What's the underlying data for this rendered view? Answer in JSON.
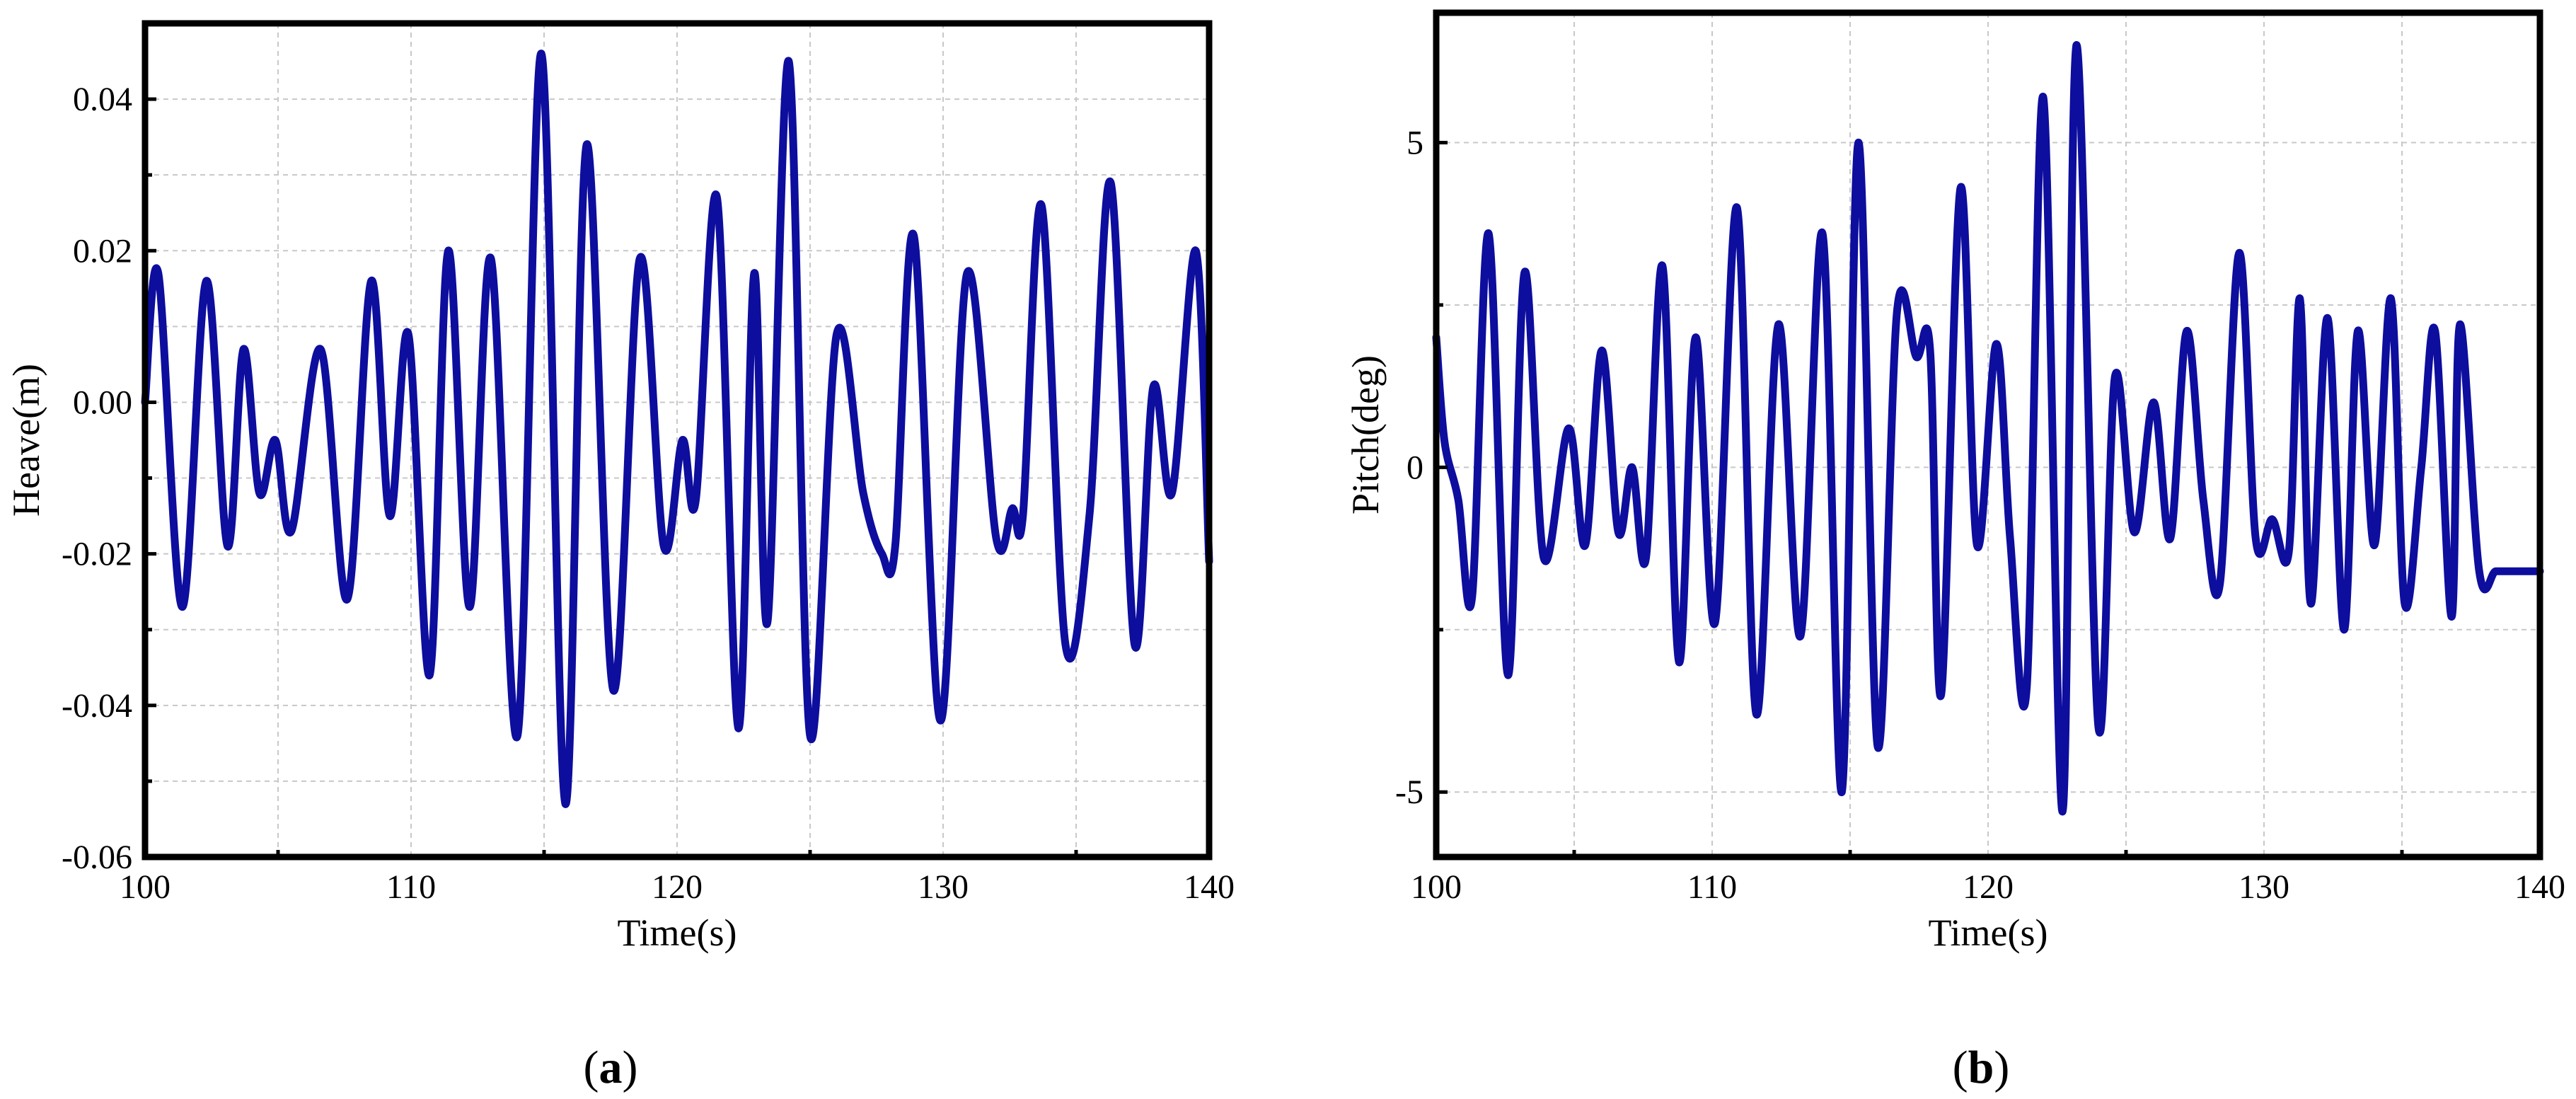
{
  "figure": {
    "captions": [
      {
        "open": "(",
        "letter": "a",
        "close": ")"
      },
      {
        "open": "(",
        "letter": "b",
        "close": ")"
      }
    ]
  },
  "colors": {
    "line": "#0d0d9e",
    "grid": "#c8c8c8",
    "frame": "#000000"
  },
  "chart_data": [
    {
      "type": "line",
      "title": "",
      "xlabel": "Time(s)",
      "ylabel": "Heave(m)",
      "xlim": [
        100,
        140
      ],
      "ylim": [
        -0.06,
        0.05
      ],
      "xticks": [
        100,
        110,
        120,
        130,
        140
      ],
      "xtick_labels": [
        "100",
        "110",
        "120",
        "130",
        "140"
      ],
      "yticks": [
        -0.06,
        -0.04,
        -0.02,
        0.0,
        0.02,
        0.04
      ],
      "ytick_labels": [
        "-0.06",
        "-0.04",
        "-0.02",
        "0.00",
        "0.02",
        "0.04"
      ],
      "grid": true,
      "legend": "none",
      "series": [
        {
          "color": "#0d0d9e",
          "x": [
            100.0,
            100.5,
            101.4,
            102.3,
            103.1,
            103.7,
            104.3,
            104.9,
            105.5,
            106.6,
            107.6,
            108.5,
            109.2,
            109.9,
            110.7,
            111.4,
            112.2,
            113.0,
            114.0,
            114.9,
            115.8,
            116.6,
            117.6,
            118.6,
            119.5,
            120.2,
            120.7,
            121.5,
            122.3,
            122.9,
            123.4,
            124.2,
            125.0,
            126.0,
            127.0,
            127.7,
            128.2,
            128.9,
            129.9,
            130.9,
            132.0,
            132.6,
            133.0,
            133.7,
            134.6,
            135.5,
            136.3,
            137.2,
            137.9,
            138.6,
            139.5,
            140.0
          ],
          "y": [
            0.0,
            0.017,
            -0.027,
            0.016,
            -0.019,
            0.007,
            -0.012,
            -0.005,
            -0.017,
            0.007,
            -0.026,
            0.016,
            -0.015,
            0.009,
            -0.036,
            0.02,
            -0.027,
            0.019,
            -0.044,
            0.046,
            -0.053,
            0.034,
            -0.038,
            0.019,
            -0.019,
            -0.005,
            -0.013,
            0.027,
            -0.043,
            0.017,
            -0.029,
            0.045,
            -0.044,
            0.009,
            -0.012,
            -0.02,
            -0.019,
            0.022,
            -0.042,
            0.017,
            -0.018,
            -0.014,
            -0.015,
            0.026,
            -0.032,
            -0.015,
            0.029,
            -0.032,
            0.002,
            -0.012,
            0.02,
            -0.021
          ]
        }
      ]
    },
    {
      "type": "line",
      "title": "",
      "xlabel": "Time(s)",
      "ylabel": "Pitch(deg)",
      "xlim": [
        100,
        140
      ],
      "ylim": [
        -6,
        7
      ],
      "xticks": [
        100,
        110,
        120,
        130,
        140
      ],
      "xtick_labels": [
        "100",
        "110",
        "120",
        "130",
        "140"
      ],
      "yticks": [
        -5,
        0,
        5
      ],
      "ytick_labels": [
        "-5",
        "0",
        "5"
      ],
      "grid": true,
      "legend": "none",
      "series": [
        {
          "color": "#0d0d9e",
          "x": [
            100.0,
            100.3,
            100.8,
            101.3,
            101.9,
            102.6,
            103.2,
            103.9,
            104.8,
            105.4,
            106.0,
            106.6,
            107.1,
            107.6,
            108.2,
            108.8,
            109.4,
            110.1,
            110.9,
            111.6,
            112.4,
            113.2,
            114.0,
            114.7,
            115.3,
            116.0,
            116.7,
            117.4,
            117.9,
            118.3,
            119.0,
            119.6,
            120.3,
            120.8,
            121.4,
            122.0,
            122.7,
            123.2,
            124.0,
            124.6,
            125.3,
            126.0,
            126.6,
            127.2,
            127.8,
            128.4,
            129.1,
            129.7,
            130.3,
            130.9,
            131.3,
            131.7,
            132.3,
            132.9,
            133.4,
            134.0,
            134.6,
            135.1,
            135.7,
            136.2,
            136.8,
            137.1,
            137.8,
            138.4,
            139.0,
            139.7,
            140.0
          ],
          "y": [
            2.0,
            0.4,
            -0.5,
            -2.0,
            3.6,
            -3.2,
            3.0,
            -1.4,
            0.6,
            -1.2,
            1.8,
            -1.0,
            0.0,
            -1.4,
            3.1,
            -3.0,
            2.0,
            -2.4,
            4.0,
            -3.8,
            2.2,
            -2.6,
            3.6,
            -5.0,
            5.0,
            -4.3,
            2.4,
            1.7,
            1.8,
            -3.5,
            4.3,
            -1.2,
            1.9,
            -1.1,
            -3.4,
            5.7,
            -5.3,
            6.5,
            -4.0,
            1.4,
            -1.0,
            1.0,
            -1.1,
            2.1,
            -0.5,
            -1.8,
            3.3,
            -1.1,
            -0.8,
            -1.3,
            2.6,
            -2.1,
            2.3,
            -2.5,
            2.1,
            -1.2,
            2.6,
            -2.1,
            0.0,
            2.1,
            -2.3,
            2.2,
            -1.6,
            -1.6,
            -1.6,
            -1.6,
            -1.6
          ]
        }
      ]
    }
  ]
}
